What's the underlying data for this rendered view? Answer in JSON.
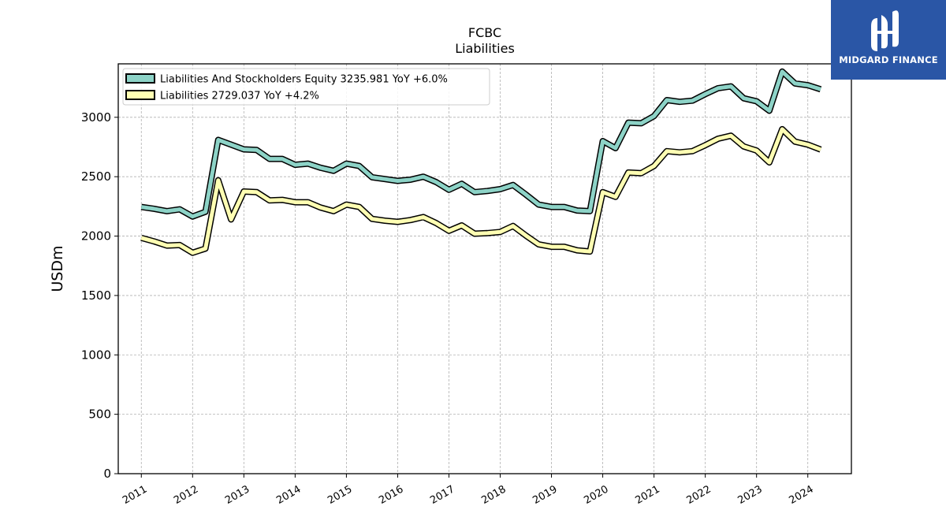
{
  "chart_data": {
    "type": "line",
    "title": "FCBC",
    "subtitle": "Liabilities",
    "ylabel": "USDm",
    "xlabel": "",
    "ylim": [
      0,
      3450
    ],
    "xlim": [
      2010.55,
      2024.85
    ],
    "yticks": [
      0,
      500,
      1000,
      1500,
      2000,
      2500,
      3000
    ],
    "xticks": [
      "2011",
      "2012",
      "2013",
      "2014",
      "2015",
      "2016",
      "2017",
      "2018",
      "2019",
      "2020",
      "2021",
      "2022",
      "2023",
      "2024"
    ],
    "grid": true,
    "legend_position": "top-left",
    "x": [
      2011.0,
      2011.25,
      2011.5,
      2011.75,
      2012.0,
      2012.25,
      2012.5,
      2012.75,
      2013.0,
      2013.25,
      2013.5,
      2013.75,
      2014.0,
      2014.25,
      2014.5,
      2014.75,
      2015.0,
      2015.25,
      2015.5,
      2015.75,
      2016.0,
      2016.25,
      2016.5,
      2016.75,
      2017.0,
      2017.25,
      2017.5,
      2017.75,
      2018.0,
      2018.25,
      2018.5,
      2018.75,
      2019.0,
      2019.25,
      2019.5,
      2019.75,
      2020.0,
      2020.25,
      2020.5,
      2020.75,
      2021.0,
      2021.25,
      2021.5,
      2021.75,
      2022.0,
      2022.25,
      2022.5,
      2022.75,
      2023.0,
      2023.25,
      2023.5,
      2023.75,
      2024.0,
      2024.25
    ],
    "series": [
      {
        "name": "Liabilities And Stockholders Equity",
        "legend": "Liabilities And Stockholders Equity  3235.981 YoY +6.0%",
        "color": "#8dd3c7",
        "values": [
          2245,
          2230,
          2210,
          2225,
          2165,
          2205,
          2810,
          2770,
          2730,
          2725,
          2650,
          2650,
          2600,
          2610,
          2575,
          2550,
          2610,
          2590,
          2495,
          2480,
          2465,
          2475,
          2500,
          2455,
          2390,
          2440,
          2370,
          2380,
          2395,
          2430,
          2350,
          2265,
          2245,
          2245,
          2215,
          2210,
          2800,
          2740,
          2955,
          2950,
          3010,
          3145,
          3130,
          3140,
          3195,
          3245,
          3260,
          3160,
          3135,
          3055,
          3385,
          3285,
          3270,
          3235.981
        ]
      },
      {
        "name": "Liabilities",
        "legend": "Liabilities  2729.037 YoY +4.2%",
        "color": "#ffffb3",
        "values": [
          1985,
          1955,
          1920,
          1925,
          1860,
          1895,
          2470,
          2140,
          2375,
          2370,
          2300,
          2305,
          2285,
          2285,
          2240,
          2210,
          2265,
          2245,
          2145,
          2130,
          2120,
          2135,
          2160,
          2110,
          2045,
          2090,
          2020,
          2025,
          2035,
          2085,
          2005,
          1930,
          1910,
          1910,
          1880,
          1870,
          2370,
          2330,
          2535,
          2530,
          2590,
          2715,
          2705,
          2715,
          2765,
          2820,
          2845,
          2755,
          2720,
          2620,
          2900,
          2795,
          2770,
          2729.037
        ]
      }
    ]
  },
  "logo": {
    "text": "MIDGARD FINANCE"
  }
}
